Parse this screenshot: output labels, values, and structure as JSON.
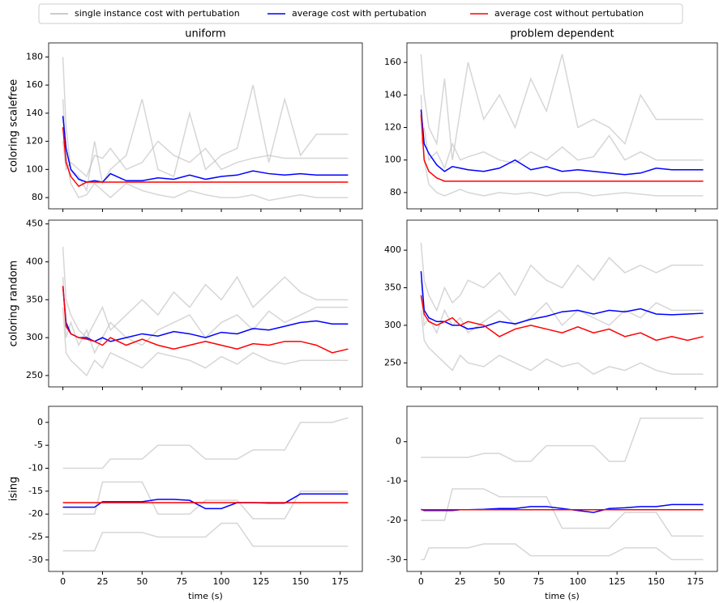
{
  "legend": [
    {
      "name": "single instance cost with pertubation",
      "color": "#bbbbbb"
    },
    {
      "name": "average cost with pertubation",
      "color": "#0000ff"
    },
    {
      "name": "average cost without pertubation",
      "color": "#ff0000"
    }
  ],
  "chart_data": [
    {
      "type": "line",
      "title": "uniform",
      "ylabel": "coloring scalefree",
      "x": [
        0,
        2,
        5,
        10,
        15,
        20,
        25,
        30,
        40,
        50,
        60,
        70,
        80,
        90,
        100,
        110,
        120,
        130,
        140,
        150,
        160,
        170,
        180
      ],
      "xlim": [
        -9,
        189
      ],
      "xticks": [
        0,
        25,
        50,
        75,
        100,
        125,
        150,
        175
      ],
      "ylim": [
        72,
        190
      ],
      "yticks": [
        80,
        100,
        120,
        140,
        160,
        180
      ],
      "series": [
        {
          "color": "#bbbbbb",
          "values": [
            180,
            130,
            100,
            95,
            85,
            120,
            90,
            100,
            110,
            150,
            100,
            95,
            140,
            100,
            110,
            115,
            160,
            105,
            150,
            110,
            125,
            125,
            125
          ]
        },
        {
          "color": "#bbbbbb",
          "values": [
            150,
            110,
            90,
            80,
            82,
            90,
            85,
            80,
            90,
            85,
            82,
            80,
            85,
            82,
            80,
            80,
            82,
            78,
            80,
            82,
            80,
            80,
            80
          ]
        },
        {
          "color": "#bbbbbb",
          "values": [
            120,
            100,
            105,
            100,
            95,
            110,
            108,
            115,
            100,
            105,
            120,
            110,
            105,
            115,
            100,
            105,
            108,
            110,
            108,
            108,
            108,
            108,
            108
          ]
        },
        {
          "color": "#0000ff",
          "values": [
            138,
            115,
            100,
            93,
            91,
            92,
            91,
            97,
            92,
            92,
            94,
            93,
            96,
            93,
            95,
            96,
            99,
            97,
            96,
            97,
            96,
            96,
            96
          ]
        },
        {
          "color": "#ff0000",
          "values": [
            130,
            105,
            95,
            88,
            91,
            91,
            91,
            91,
            91,
            91,
            91,
            91,
            91,
            91,
            91,
            91,
            91,
            91,
            91,
            91,
            91,
            91,
            91
          ]
        }
      ]
    },
    {
      "type": "line",
      "title": "problem dependent",
      "x": [
        0,
        2,
        5,
        10,
        15,
        20,
        25,
        30,
        40,
        50,
        60,
        70,
        80,
        90,
        100,
        110,
        120,
        130,
        140,
        150,
        160,
        170,
        180
      ],
      "xlim": [
        -9,
        189
      ],
      "xticks": [
        0,
        25,
        50,
        75,
        100,
        125,
        150,
        175
      ],
      "ylim": [
        70,
        172
      ],
      "yticks": [
        80,
        100,
        120,
        140,
        160
      ],
      "series": [
        {
          "color": "#bbbbbb",
          "values": [
            165,
            140,
            120,
            110,
            150,
            100,
            130,
            160,
            125,
            140,
            120,
            150,
            130,
            165,
            120,
            125,
            120,
            110,
            140,
            125,
            125,
            125,
            125
          ]
        },
        {
          "color": "#bbbbbb",
          "values": [
            140,
            100,
            85,
            80,
            78,
            80,
            82,
            80,
            78,
            80,
            79,
            80,
            78,
            80,
            80,
            78,
            79,
            80,
            79,
            78,
            78,
            78,
            78
          ]
        },
        {
          "color": "#bbbbbb",
          "values": [
            110,
            120,
            100,
            105,
            95,
            110,
            100,
            102,
            105,
            100,
            98,
            105,
            100,
            108,
            100,
            102,
            115,
            100,
            105,
            100,
            100,
            100,
            100
          ]
        },
        {
          "color": "#0000ff",
          "values": [
            131,
            110,
            104,
            97,
            93,
            96,
            95,
            94,
            93,
            95,
            100,
            94,
            96,
            93,
            94,
            93,
            92,
            91,
            92,
            95,
            94,
            94,
            94
          ]
        },
        {
          "color": "#ff0000",
          "values": [
            128,
            100,
            93,
            89,
            87,
            87,
            87,
            87,
            87,
            87,
            87,
            87,
            87,
            87,
            87,
            87,
            87,
            87,
            87,
            87,
            87,
            87,
            87
          ]
        }
      ]
    },
    {
      "type": "line",
      "ylabel": "coloring random",
      "x": [
        0,
        2,
        5,
        10,
        15,
        20,
        25,
        30,
        40,
        50,
        60,
        70,
        80,
        90,
        100,
        110,
        120,
        130,
        140,
        150,
        160,
        170,
        180
      ],
      "xlim": [
        -9,
        189
      ],
      "xticks": [
        0,
        25,
        50,
        75,
        100,
        125,
        150,
        175
      ],
      "ylim": [
        235,
        455
      ],
      "yticks": [
        250,
        300,
        350,
        400,
        450
      ],
      "series": [
        {
          "color": "#bbbbbb",
          "values": [
            420,
            350,
            330,
            310,
            300,
            320,
            340,
            310,
            330,
            350,
            330,
            360,
            340,
            370,
            350,
            380,
            340,
            360,
            380,
            360,
            350,
            350,
            350
          ]
        },
        {
          "color": "#bbbbbb",
          "values": [
            340,
            280,
            270,
            260,
            250,
            270,
            260,
            280,
            270,
            260,
            280,
            275,
            270,
            260,
            275,
            265,
            280,
            270,
            265,
            270,
            270,
            270,
            270
          ]
        },
        {
          "color": "#bbbbbb",
          "values": [
            380,
            300,
            320,
            290,
            310,
            280,
            300,
            320,
            300,
            290,
            310,
            320,
            330,
            300,
            320,
            330,
            310,
            335,
            320,
            330,
            340,
            340,
            340
          ]
        },
        {
          "color": "#0000ff",
          "values": [
            368,
            320,
            305,
            300,
            300,
            295,
            300,
            295,
            300,
            305,
            302,
            308,
            305,
            300,
            307,
            305,
            312,
            310,
            315,
            320,
            322,
            318,
            318
          ]
        },
        {
          "color": "#ff0000",
          "values": [
            368,
            315,
            305,
            300,
            298,
            295,
            290,
            300,
            290,
            298,
            290,
            285,
            290,
            295,
            290,
            285,
            292,
            290,
            295,
            295,
            290,
            280,
            285
          ]
        }
      ]
    },
    {
      "type": "line",
      "x": [
        0,
        2,
        5,
        10,
        15,
        20,
        25,
        30,
        40,
        50,
        60,
        70,
        80,
        90,
        100,
        110,
        120,
        130,
        140,
        150,
        160,
        170,
        180
      ],
      "xlim": [
        -9,
        189
      ],
      "xticks": [
        0,
        25,
        50,
        75,
        100,
        125,
        150,
        175
      ],
      "ylim": [
        218,
        440
      ],
      "yticks": [
        250,
        300,
        350,
        400
      ],
      "series": [
        {
          "color": "#bbbbbb",
          "values": [
            410,
            360,
            340,
            320,
            350,
            330,
            340,
            360,
            350,
            370,
            340,
            380,
            360,
            350,
            380,
            360,
            390,
            370,
            380,
            370,
            380,
            380,
            380
          ]
        },
        {
          "color": "#bbbbbb",
          "values": [
            320,
            280,
            270,
            260,
            250,
            240,
            260,
            250,
            245,
            260,
            250,
            240,
            255,
            245,
            250,
            235,
            245,
            240,
            250,
            240,
            235,
            235,
            235
          ]
        },
        {
          "color": "#bbbbbb",
          "values": [
            360,
            300,
            310,
            290,
            320,
            300,
            310,
            290,
            305,
            320,
            300,
            310,
            330,
            300,
            320,
            310,
            300,
            320,
            310,
            330,
            320,
            320,
            320
          ]
        },
        {
          "color": "#0000ff",
          "values": [
            372,
            320,
            310,
            305,
            305,
            300,
            300,
            295,
            298,
            305,
            302,
            308,
            312,
            318,
            320,
            315,
            320,
            318,
            322,
            315,
            314,
            315,
            316
          ]
        },
        {
          "color": "#ff0000",
          "values": [
            340,
            315,
            305,
            300,
            305,
            310,
            300,
            305,
            300,
            285,
            295,
            300,
            295,
            290,
            298,
            290,
            295,
            285,
            290,
            280,
            285,
            280,
            285
          ]
        }
      ]
    },
    {
      "type": "line",
      "ylabel": "ising",
      "xlabel": "time (s)",
      "x": [
        0,
        2,
        5,
        10,
        15,
        20,
        25,
        30,
        40,
        50,
        60,
        70,
        80,
        90,
        100,
        110,
        120,
        130,
        140,
        150,
        160,
        170,
        180
      ],
      "xlim": [
        -9,
        189
      ],
      "xticks": [
        0,
        25,
        50,
        75,
        100,
        125,
        150,
        175
      ],
      "ylim": [
        -32.5,
        3.5
      ],
      "yticks": [
        -30,
        -25,
        -20,
        -15,
        -10,
        -5,
        0
      ],
      "series": [
        {
          "color": "#bbbbbb",
          "values": [
            -10,
            -10,
            -10,
            -10,
            -10,
            -10,
            -10,
            -8,
            -8,
            -8,
            -5,
            -5,
            -5,
            -8,
            -8,
            -8,
            -6,
            -6,
            -6,
            0,
            0,
            0,
            1
          ]
        },
        {
          "color": "#bbbbbb",
          "values": [
            -28,
            -28,
            -28,
            -28,
            -28,
            -28,
            -24,
            -24,
            -24,
            -24,
            -25,
            -25,
            -25,
            -25,
            -22,
            -22,
            -27,
            -27,
            -27,
            -27,
            -27,
            -27,
            -27
          ]
        },
        {
          "color": "#bbbbbb",
          "values": [
            -20,
            -20,
            -20,
            -20,
            -20,
            -20,
            -13,
            -13,
            -13,
            -13,
            -20,
            -20,
            -20,
            -17,
            -17,
            -17,
            -21,
            -21,
            -21,
            -15,
            -15,
            -15,
            -15
          ]
        },
        {
          "color": "#0000ff",
          "values": [
            -18.5,
            -18.5,
            -18.5,
            -18.5,
            -18.5,
            -18.5,
            -17.3,
            -17.3,
            -17.3,
            -17.3,
            -16.8,
            -16.8,
            -17,
            -18.8,
            -18.8,
            -17.5,
            -17.5,
            -17.6,
            -17.6,
            -15.6,
            -15.6,
            -15.6,
            -15.6
          ]
        },
        {
          "color": "#ff0000",
          "values": [
            -17.5,
            -17.5,
            -17.5,
            -17.5,
            -17.5,
            -17.5,
            -17.5,
            -17.5,
            -17.5,
            -17.5,
            -17.5,
            -17.5,
            -17.5,
            -17.5,
            -17.5,
            -17.5,
            -17.5,
            -17.5,
            -17.5,
            -17.5,
            -17.5,
            -17.5,
            -17.5
          ]
        }
      ]
    },
    {
      "type": "line",
      "xlabel": "time (s)",
      "x": [
        0,
        2,
        5,
        10,
        15,
        20,
        25,
        30,
        40,
        50,
        60,
        70,
        80,
        90,
        100,
        110,
        120,
        130,
        140,
        150,
        160,
        170,
        180
      ],
      "xlim": [
        -9,
        189
      ],
      "xticks": [
        0,
        25,
        50,
        75,
        100,
        125,
        150,
        175
      ],
      "ylim": [
        -33,
        9
      ],
      "yticks": [
        -30,
        -20,
        -10,
        0
      ],
      "series": [
        {
          "color": "#bbbbbb",
          "values": [
            -4,
            -4,
            -4,
            -4,
            -4,
            -4,
            -4,
            -4,
            -3,
            -3,
            -5,
            -5,
            -1,
            -1,
            -1,
            -1,
            -5,
            -5,
            6,
            6,
            6,
            6,
            6
          ]
        },
        {
          "color": "#bbbbbb",
          "values": [
            -30,
            -30,
            -27,
            -27,
            -27,
            -27,
            -27,
            -27,
            -26,
            -26,
            -26,
            -29,
            -29,
            -29,
            -29,
            -29,
            -29,
            -27,
            -27,
            -27,
            -30,
            -30,
            -30
          ]
        },
        {
          "color": "#bbbbbb",
          "values": [
            -20,
            -20,
            -20,
            -20,
            -20,
            -12,
            -12,
            -12,
            -12,
            -14,
            -14,
            -14,
            -14,
            -22,
            -22,
            -22,
            -22,
            -18,
            -18,
            -18,
            -24,
            -24,
            -24
          ]
        },
        {
          "color": "#0000ff",
          "values": [
            -17.2,
            -17.5,
            -17.5,
            -17.5,
            -17.5,
            -17.5,
            -17.3,
            -17.3,
            -17.2,
            -17,
            -17,
            -16.5,
            -16.5,
            -17,
            -17.5,
            -18,
            -17,
            -16.8,
            -16.5,
            -16.5,
            -16,
            -16,
            -16
          ]
        },
        {
          "color": "#ff0000",
          "values": [
            -17.3,
            -17.3,
            -17.3,
            -17.3,
            -17.3,
            -17.3,
            -17.3,
            -17.3,
            -17.3,
            -17.3,
            -17.3,
            -17.3,
            -17.3,
            -17.3,
            -17.3,
            -17.3,
            -17.3,
            -17.3,
            -17.3,
            -17.3,
            -17.3,
            -17.3,
            -17.3
          ]
        }
      ]
    }
  ]
}
